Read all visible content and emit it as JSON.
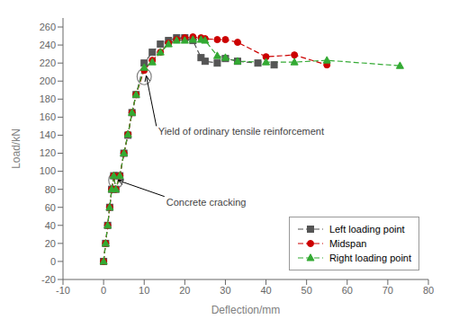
{
  "chart_data": {
    "type": "line",
    "xlabel": "Deflection/mm",
    "ylabel": "Load/kN",
    "xlim": [
      -10,
      80
    ],
    "ylim": [
      -20,
      270
    ],
    "xticks": [
      -10,
      0,
      10,
      20,
      30,
      40,
      50,
      60,
      70,
      80
    ],
    "yticks": [
      -20,
      0,
      20,
      40,
      60,
      80,
      100,
      120,
      140,
      160,
      180,
      200,
      220,
      240,
      260
    ],
    "legend": "lower right",
    "series": [
      {
        "name": "Left loading point",
        "color": "#555555",
        "marker": "square",
        "line_style": "dashed",
        "x": [
          0,
          0.5,
          1,
          1.5,
          2,
          2.5,
          3,
          4,
          5,
          6,
          7,
          8,
          10,
          12,
          14,
          16,
          18,
          20,
          22,
          24,
          25,
          28,
          30,
          33,
          38,
          42
        ],
        "values": [
          0,
          20,
          40,
          60,
          80,
          95,
          80,
          95,
          120,
          140,
          165,
          185,
          220,
          232,
          241,
          245,
          248,
          248,
          245,
          226,
          222,
          220,
          225,
          222,
          220,
          218
        ]
      },
      {
        "name": "Midspan",
        "color": "#cc0000",
        "marker": "circle",
        "line_style": "dashed",
        "x": [
          0,
          0.5,
          1,
          1.5,
          2,
          2.5,
          3,
          4,
          5,
          6,
          7,
          8,
          10,
          12,
          14,
          16,
          18,
          20,
          22,
          24,
          25,
          28,
          30,
          33,
          40,
          47,
          55
        ],
        "values": [
          0,
          20,
          40,
          60,
          80,
          95,
          80,
          95,
          120,
          141,
          165,
          185,
          212,
          223,
          232,
          242,
          246,
          248,
          249,
          248,
          247,
          246,
          246,
          243,
          227,
          229,
          218
        ]
      },
      {
        "name": "Right loading point",
        "color": "#33aa33",
        "marker": "triangle",
        "line_style": "dashed",
        "x": [
          0,
          0.5,
          1,
          1.5,
          2,
          2.5,
          3,
          4,
          5,
          6,
          7,
          8,
          10,
          12,
          14,
          16,
          18,
          20,
          22,
          24,
          25,
          28,
          30,
          33,
          40,
          47,
          55,
          73
        ],
        "values": [
          0,
          20,
          40,
          60,
          80,
          95,
          80,
          95,
          120,
          141,
          165,
          185,
          215,
          221,
          232,
          241,
          245,
          245,
          246,
          246,
          245,
          228,
          226,
          222,
          221,
          221,
          223,
          217
        ]
      }
    ],
    "annotations": [
      {
        "text": "Yield of ordinary tensile reinforcement",
        "x": 10.5,
        "y": 206,
        "text_x": 13,
        "text_y": 150,
        "circle": {
          "x": 10,
          "y": 205,
          "width": 3.5,
          "height": 18
        }
      },
      {
        "text": "Concrete cracking",
        "x": 3.5,
        "y": 90,
        "text_x": 15,
        "text_y": 72,
        "circle": {
          "x": 3,
          "y": 90,
          "width": 3.5,
          "height": 18
        }
      }
    ]
  }
}
